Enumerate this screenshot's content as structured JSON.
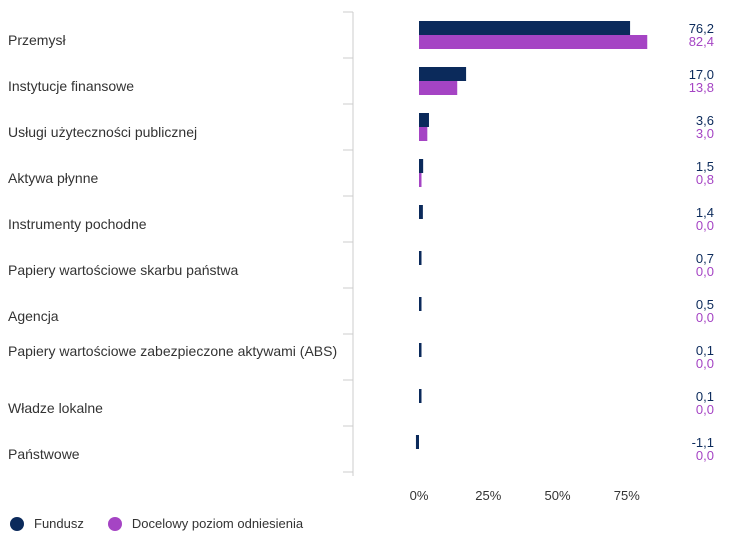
{
  "chart_data": {
    "type": "bar",
    "orientation": "horizontal",
    "categories": [
      "Przemysł",
      "Instytucje finansowe",
      "Usługi użyteczności publicznej",
      "Aktywa płynne",
      "Instrumenty pochodne",
      "Papiery wartościowe skarbu państwa",
      "Agencja",
      "Papiery wartościowe zabezpieczone aktywami (ABS)",
      "Władze lokalne",
      "Państwowe"
    ],
    "series": [
      {
        "name": "Fundusz",
        "color": "#0b2a5b",
        "values": [
          76.2,
          17.0,
          3.6,
          1.5,
          1.4,
          0.7,
          0.5,
          0.1,
          0.1,
          -1.1
        ],
        "labels": [
          "76,2",
          "17,0",
          "3,6",
          "1,5",
          "1,4",
          "0,7",
          "0,5",
          "0,1",
          "0,1",
          "-1,1"
        ]
      },
      {
        "name": "Docelowy poziom odniesienia",
        "color": "#a544c4",
        "values": [
          82.4,
          13.8,
          3.0,
          0.8,
          0.0,
          0.0,
          0.0,
          0.0,
          0.0,
          0.0
        ],
        "labels": [
          "82,4",
          "13,8",
          "3,0",
          "0,8",
          "0,0",
          "0,0",
          "0,0",
          "0,0",
          "0,0",
          "0,0"
        ]
      }
    ],
    "xticks": [
      "0%",
      "25%",
      "50%",
      "75%"
    ],
    "xtick_values": [
      0,
      25,
      50,
      75
    ],
    "xlim": [
      -25,
      100
    ],
    "legend_position": "bottom-left",
    "grid": false
  }
}
